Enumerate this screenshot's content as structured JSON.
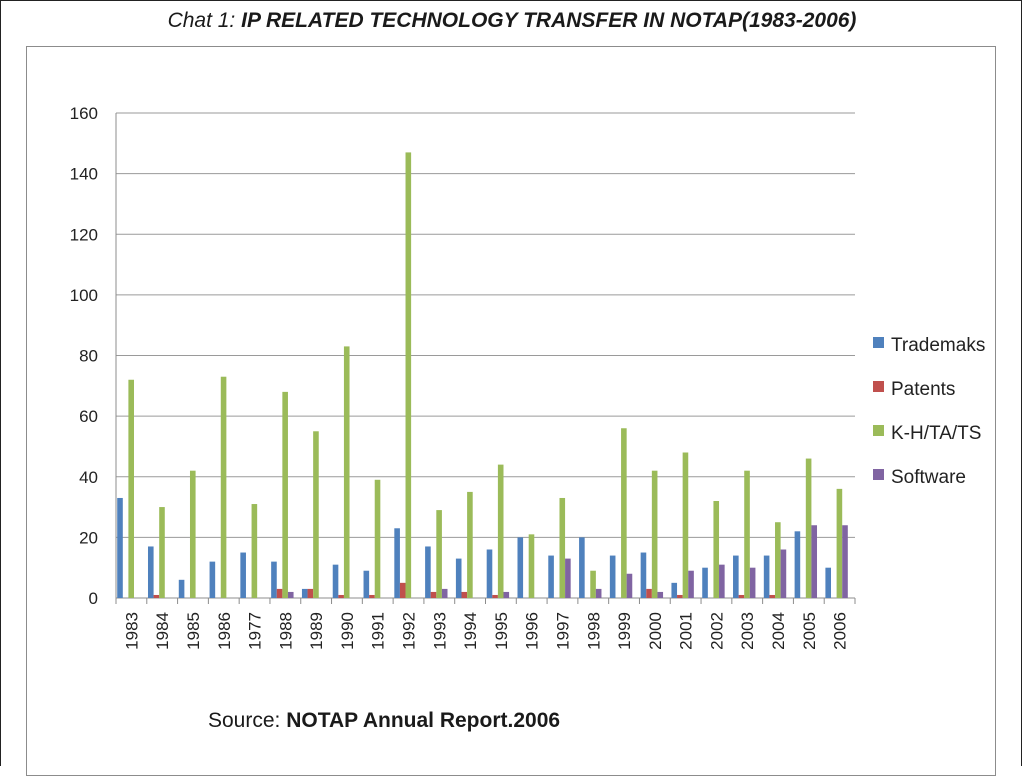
{
  "title": {
    "prefix": "Chat 1: ",
    "main": "IP RELATED TECHNOLOGY TRANSFER IN NOTAP(1983-2006)"
  },
  "source": {
    "prefix": "Source: ",
    "main": "NOTAP Annual Report.2006"
  },
  "chart_data": {
    "type": "bar",
    "title": "IP RELATED TECHNOLOGY TRANSFER IN NOTAP(1983-2006)",
    "xlabel": "",
    "ylabel": "",
    "ylim": [
      0,
      160
    ],
    "yticks": [
      0,
      20,
      40,
      60,
      80,
      100,
      120,
      140,
      160
    ],
    "grid": true,
    "legend_position": "right",
    "categories": [
      "1983",
      "1984",
      "1985",
      "1986",
      "1977",
      "1988",
      "1989",
      "1990",
      "1991",
      "1992",
      "1993",
      "1994",
      "1995",
      "1996",
      "1997",
      "1998",
      "1999",
      "2000",
      "2001",
      "2002",
      "2003",
      "2004",
      "2005",
      "2006"
    ],
    "series": [
      {
        "name": "Trademaks",
        "color": "#4f81bd",
        "values": [
          33,
          17,
          6,
          12,
          15,
          12,
          3,
          11,
          9,
          23,
          17,
          13,
          16,
          20,
          14,
          20,
          14,
          15,
          5,
          10,
          14,
          14,
          22,
          10
        ]
      },
      {
        "name": "Patents",
        "color": "#c0504d",
        "values": [
          0,
          1,
          0,
          0,
          0,
          3,
          3,
          1,
          1,
          5,
          2,
          2,
          1,
          0,
          0,
          0,
          0,
          3,
          1,
          0,
          1,
          1,
          0,
          0
        ]
      },
      {
        "name": "K-H/TA/TS",
        "color": "#9bbb59",
        "values": [
          72,
          30,
          42,
          73,
          31,
          68,
          55,
          83,
          39,
          147,
          29,
          35,
          44,
          21,
          33,
          9,
          56,
          42,
          48,
          32,
          42,
          25,
          46,
          36
        ]
      },
      {
        "name": "Software",
        "color": "#8064a2",
        "values": [
          0,
          0,
          0,
          0,
          0,
          2,
          0,
          0,
          0,
          0,
          3,
          0,
          2,
          0,
          13,
          3,
          8,
          2,
          9,
          11,
          10,
          16,
          24,
          24
        ]
      }
    ]
  }
}
